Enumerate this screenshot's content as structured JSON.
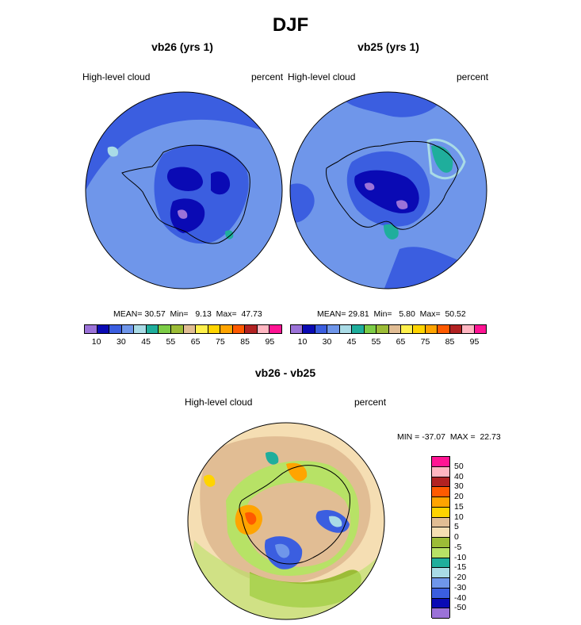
{
  "title": "DJF",
  "left_panel": {
    "title": "vb26 (yrs 1)",
    "var_label": "High-level cloud",
    "units": "percent",
    "stats": {
      "mean_label": "MEAN=",
      "mean": "30.57",
      "min_label": "Min=",
      "min": "9.13",
      "max_label": "Max=",
      "max": "47.73"
    }
  },
  "right_panel": {
    "title": "vb25 (yrs 1)",
    "var_label": "High-level cloud",
    "units": "percent",
    "stats": {
      "mean_label": "MEAN=",
      "mean": "29.81",
      "min_label": "Min=",
      "min": "5.80",
      "max_label": "Max=",
      "max": "50.52"
    }
  },
  "diff_panel": {
    "title": "vb26 - vb25",
    "var_label": "High-level cloud",
    "units": "percent",
    "minmax": "MIN = -37.07  MAX =  22.73"
  },
  "colorbar": {
    "colors": [
      "#9b72d8",
      "#0a0ab4",
      "#3b5ee0",
      "#6f96ea",
      "#a9dbe6",
      "#1fae9c",
      "#7ccd47",
      "#9cbc37",
      "#e1bd94",
      "#fff04c",
      "#ffd400",
      "#ffa400",
      "#ff5a00",
      "#b22222",
      "#ffb6c1",
      "#ff1493"
    ],
    "ticks": [
      "10",
      "30",
      "45",
      "55",
      "65",
      "75",
      "85",
      "95"
    ]
  },
  "diff_colorbar": {
    "colors": [
      "#ff1493",
      "#ffb6c1",
      "#b22222",
      "#ff5a00",
      "#ffa400",
      "#ffd400",
      "#e1bd94",
      "#f5deb3",
      "#9cbc37",
      "#b7e266",
      "#1fae9c",
      "#a9dbe6",
      "#6f96ea",
      "#3b5ee0",
      "#0a0ab4",
      "#9b72d8"
    ],
    "ticks": [
      "50",
      "40",
      "30",
      "20",
      "15",
      "10",
      "5",
      "0",
      "-5",
      "-10",
      "-15",
      "-20",
      "-30",
      "-40",
      "-50"
    ]
  },
  "colors": {
    "base_field": "#6f96ea",
    "ring": "#3b5ee0",
    "interior": "#0a0ab4",
    "diff_background": "#f5deb3"
  }
}
